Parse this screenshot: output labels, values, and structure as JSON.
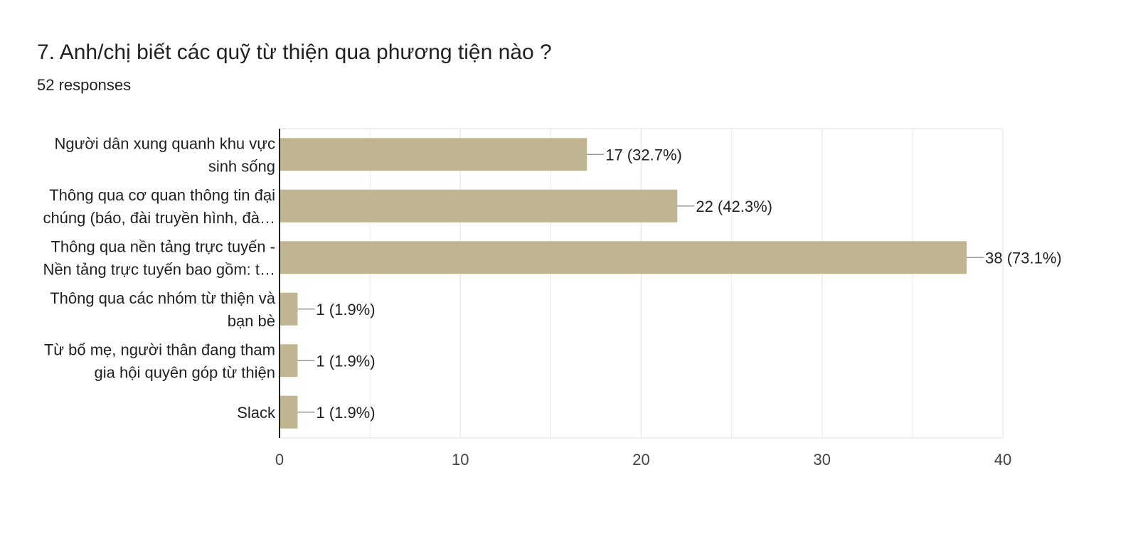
{
  "header": {
    "title": "7. Anh/chị biết các quỹ từ thiện qua phương tiện nào ?",
    "responses": "52 responses"
  },
  "colors": {
    "bar": "#bfb590",
    "grid": "#ebebeb",
    "axis": "#222222",
    "leader": "#999999"
  },
  "chart_data": {
    "type": "bar",
    "orientation": "horizontal",
    "categories": [
      [
        "Người dân xung quanh khu vực",
        "sinh sống"
      ],
      [
        "Thông qua cơ quan thông tin đại",
        "chúng (báo, đài truyền hình, đà…"
      ],
      [
        "Thông qua nền tảng trực tuyến -",
        "Nền tảng trực tuyến bao gồm: t…"
      ],
      [
        "Thông qua các nhóm từ thiện và",
        "bạn bè"
      ],
      [
        "Từ bố mẹ, người thân đang tham",
        "gia hội quyên góp từ thiện"
      ],
      [
        "Slack"
      ]
    ],
    "values": [
      17,
      22,
      38,
      1,
      1,
      1
    ],
    "value_labels": [
      "17 (32.7%)",
      "22 (42.3%)",
      "38 (73.1%)",
      "1 (1.9%)",
      "1 (1.9%)",
      "1 (1.9%)"
    ],
    "xlim": [
      0,
      40
    ],
    "xticks": [
      "0",
      "10",
      "20",
      "30",
      "40"
    ],
    "xtick_values": [
      0,
      10,
      20,
      30,
      40
    ],
    "minor_grid_values": [
      5,
      15,
      25,
      35
    ],
    "grid": true,
    "legend": "none"
  }
}
